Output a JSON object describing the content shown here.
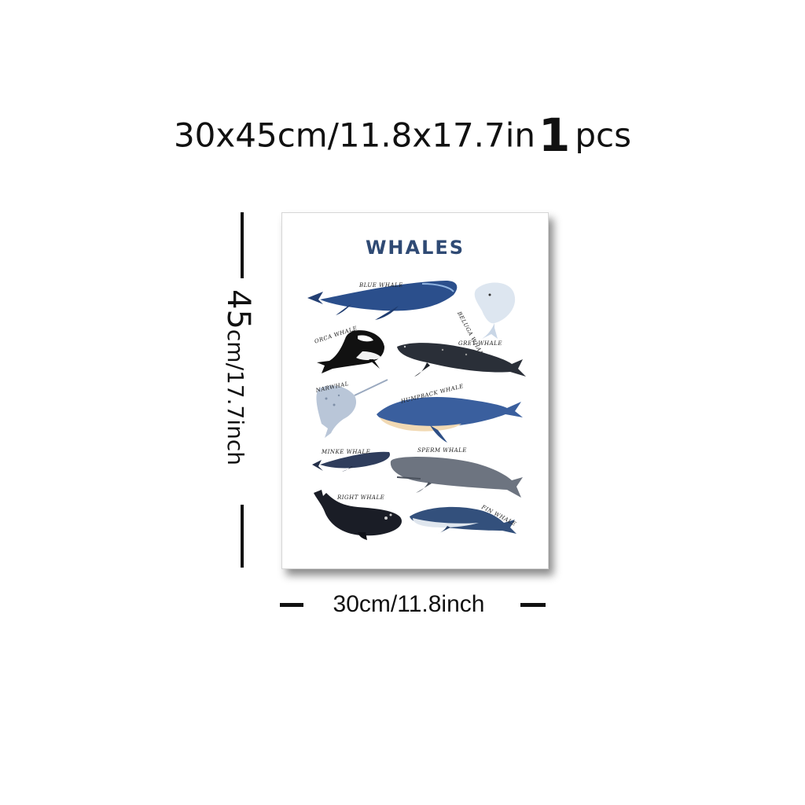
{
  "header": {
    "size_text": "30x45cm/11.8x17.7in",
    "quantity": "1",
    "quantity_unit": "pcs"
  },
  "dimensions": {
    "height_big": "45",
    "height_rest": "cm/17.7inch",
    "width_text": "30cm/11.8inch"
  },
  "poster": {
    "title": "WHALES",
    "labels": {
      "blue": "BLUE WHALE",
      "beluga": "BELUGA WHALE",
      "orca": "ORCA WHALE",
      "grey": "GREY WHALE",
      "narwhal": "NARWHAL",
      "humpback": "HUMPBACK WHALE",
      "minke": "MINKE WHALE",
      "sperm": "SPERM WHALE",
      "right": "RIGHT WHALE",
      "fin": "FIN WHALE"
    }
  }
}
